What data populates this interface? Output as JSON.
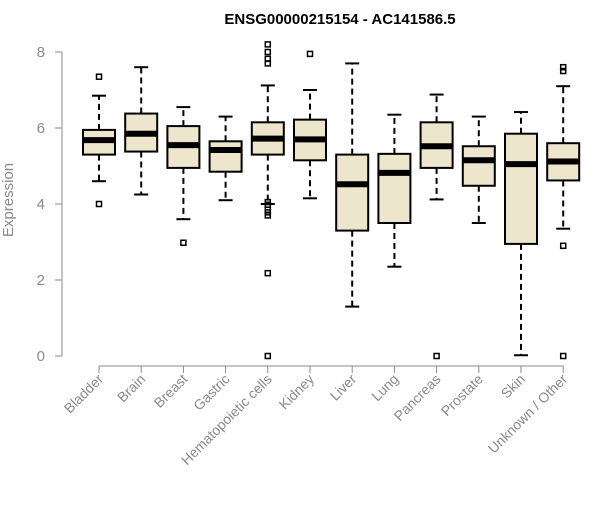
{
  "chart_data": {
    "type": "box",
    "title": "ENSG00000215154 - AC141586.5",
    "xlabel": "",
    "ylabel": "Expression",
    "ylim": [
      0,
      8
    ],
    "yticks": [
      "0",
      "2",
      "4",
      "6",
      "8"
    ],
    "grid": false,
    "legend": "none",
    "colors": {
      "box_fill": "#ede6cd",
      "stroke": "#000000",
      "axis": "#8a8a8a",
      "title": "#000000"
    },
    "categories": [
      "Bladder",
      "Brain",
      "Breast",
      "Gastric",
      "Hematopoietic cells",
      "Kidney",
      "Liver",
      "Lung",
      "Pancreas",
      "Prostate",
      "Skin",
      "Unknown / Other"
    ],
    "boxes": [
      {
        "category": "Bladder",
        "whisker_low": 4.6,
        "q1": 5.3,
        "median": 5.68,
        "q3": 5.95,
        "whisker_high": 6.85,
        "outliers": [
          7.35,
          4.0
        ]
      },
      {
        "category": "Brain",
        "whisker_low": 4.25,
        "q1": 5.38,
        "median": 5.85,
        "q3": 6.38,
        "whisker_high": 7.6,
        "outliers": []
      },
      {
        "category": "Breast",
        "whisker_low": 3.6,
        "q1": 4.95,
        "median": 5.55,
        "q3": 6.05,
        "whisker_high": 6.55,
        "outliers": [
          2.98
        ]
      },
      {
        "category": "Gastric",
        "whisker_low": 4.1,
        "q1": 4.85,
        "median": 5.42,
        "q3": 5.65,
        "whisker_high": 6.3,
        "outliers": []
      },
      {
        "category": "Hematopoietic cells",
        "whisker_low": 4.0,
        "q1": 5.3,
        "median": 5.72,
        "q3": 6.15,
        "whisker_high": 7.12,
        "outliers": [
          8.2,
          8.0,
          7.82,
          7.7,
          4.05,
          3.98,
          3.85,
          3.78,
          3.7,
          2.18,
          0.0
        ]
      },
      {
        "category": "Kidney",
        "whisker_low": 4.15,
        "q1": 5.15,
        "median": 5.7,
        "q3": 6.22,
        "whisker_high": 7.0,
        "outliers": [
          7.95
        ]
      },
      {
        "category": "Liver",
        "whisker_low": 1.3,
        "q1": 3.3,
        "median": 4.52,
        "q3": 5.3,
        "whisker_high": 7.7,
        "outliers": []
      },
      {
        "category": "Lung",
        "whisker_low": 2.35,
        "q1": 3.5,
        "median": 4.82,
        "q3": 5.32,
        "whisker_high": 6.35,
        "outliers": []
      },
      {
        "category": "Pancreas",
        "whisker_low": 4.12,
        "q1": 4.95,
        "median": 5.52,
        "q3": 6.15,
        "whisker_high": 6.88,
        "outliers": [
          0.0
        ]
      },
      {
        "category": "Prostate",
        "whisker_low": 3.5,
        "q1": 4.48,
        "median": 5.15,
        "q3": 5.52,
        "whisker_high": 6.3,
        "outliers": []
      },
      {
        "category": "Skin",
        "whisker_low": 0.02,
        "q1": 2.95,
        "median": 5.05,
        "q3": 5.85,
        "whisker_high": 6.42,
        "outliers": []
      },
      {
        "category": "Unknown / Other",
        "whisker_low": 3.35,
        "q1": 4.62,
        "median": 5.12,
        "q3": 5.6,
        "whisker_high": 7.1,
        "outliers": [
          7.6,
          7.5,
          2.9,
          0.0
        ]
      }
    ]
  }
}
